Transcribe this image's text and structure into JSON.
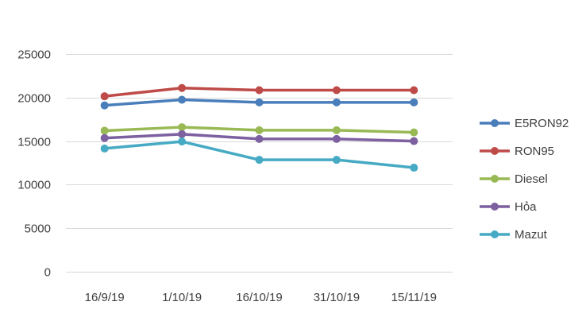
{
  "chart_data": {
    "type": "line",
    "title": "",
    "xlabel": "",
    "ylabel": "",
    "categories": [
      "16/9/19",
      "1/10/19",
      "16/10/19",
      "31/10/19",
      "15/11/19"
    ],
    "ylim": [
      0,
      25000
    ],
    "yticks": [
      0,
      5000,
      10000,
      15000,
      20000,
      25000
    ],
    "grid": true,
    "legend_position": "right",
    "series": [
      {
        "name": "E5RON92",
        "color": "#4a7ebb",
        "values": [
          19100,
          19750,
          19450,
          19450,
          19450
        ]
      },
      {
        "name": "RON95",
        "color": "#be4b48",
        "values": [
          20150,
          21100,
          20850,
          20850,
          20850
        ]
      },
      {
        "name": "Diesel",
        "color": "#98b954",
        "values": [
          16200,
          16600,
          16250,
          16250,
          16000
        ]
      },
      {
        "name": "Hỏa",
        "color": "#7d60a0",
        "values": [
          15350,
          15800,
          15250,
          15250,
          15000
        ]
      },
      {
        "name": "Mazut",
        "color": "#46aac4",
        "values": [
          14150,
          14950,
          12850,
          12850,
          11950
        ]
      }
    ]
  }
}
